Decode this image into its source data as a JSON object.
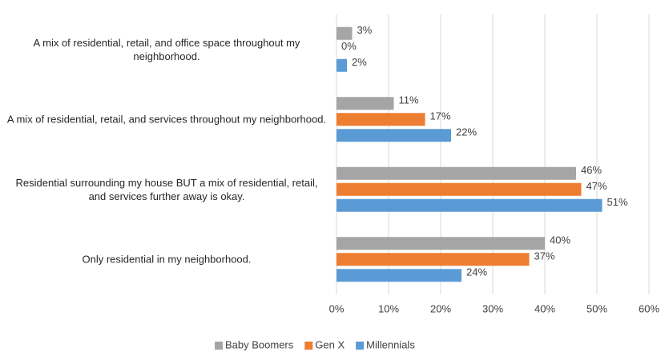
{
  "chart_data": {
    "type": "bar",
    "orientation": "horizontal",
    "categories": [
      "A mix of residential, retail, and office space throughout my neighborhood.",
      "A mix of residential, retail, and services throughout my neighborhood.",
      "Residential surrounding my house BUT a mix of residential, retail, and services further away is okay.",
      "Only residential in my neighborhood."
    ],
    "series": [
      {
        "name": "Baby Boomers",
        "color": "#a5a5a5",
        "values": [
          3,
          11,
          46,
          40
        ],
        "value_labels": [
          "3%",
          "11%",
          "46%",
          "40%"
        ]
      },
      {
        "name": "Gen X",
        "color": "#ed7d31",
        "values": [
          0,
          17,
          47,
          37
        ],
        "value_labels": [
          "0%",
          "17%",
          "47%",
          "37%"
        ]
      },
      {
        "name": "Millennials",
        "color": "#5b9bd5",
        "values": [
          2,
          22,
          51,
          24
        ],
        "value_labels": [
          "2%",
          "22%",
          "51%",
          "24%"
        ]
      }
    ],
    "xlim": [
      0,
      60
    ],
    "xticks": [
      {
        "value": 0,
        "label": "0%"
      },
      {
        "value": 10,
        "label": "10%"
      },
      {
        "value": 20,
        "label": "20%"
      },
      {
        "value": 30,
        "label": "30%"
      },
      {
        "value": 40,
        "label": "40%"
      },
      {
        "value": 50,
        "label": "50%"
      },
      {
        "value": 60,
        "label": "60%"
      }
    ],
    "grid": true,
    "legend": "bottom"
  }
}
